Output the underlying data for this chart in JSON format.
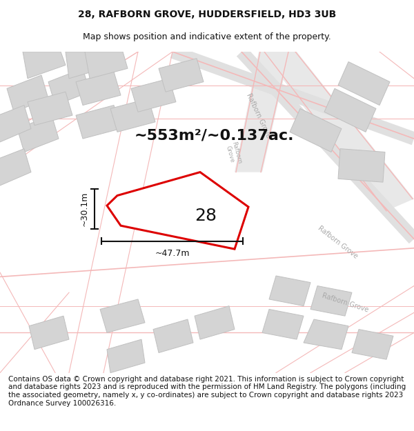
{
  "title_line1": "28, RAFBORN GROVE, HUDDERSFIELD, HD3 3UB",
  "title_line2": "Map shows position and indicative extent of the property.",
  "footer_text": "Contains OS data © Crown copyright and database right 2021. This information is subject to Crown copyright and database rights 2023 and is reproduced with the permission of HM Land Registry. The polygons (including the associated geometry, namely x, y co-ordinates) are subject to Crown copyright and database rights 2023 Ordnance Survey 100026316.",
  "area_label": "~553m²/~0.137ac.",
  "number_label": "28",
  "width_label": "~47.7m",
  "height_label": "~30.1m",
  "bg_color": "#f5f5f5",
  "map_bg_color": "#f0f0f0",
  "road_color": "#f4b8b8",
  "road_fill": "#e8e8e8",
  "building_color": "#d8d8d8",
  "plot_outline_color": "#dd0000",
  "plot_fill_color": "#ffffff",
  "street_label_color": "#aaaaaa",
  "dim_color": "#111111",
  "title_fontsize": 10,
  "subtitle_fontsize": 9,
  "area_fontsize": 16,
  "number_fontsize": 18,
  "dim_label_fontsize": 9,
  "footer_fontsize": 7.5
}
